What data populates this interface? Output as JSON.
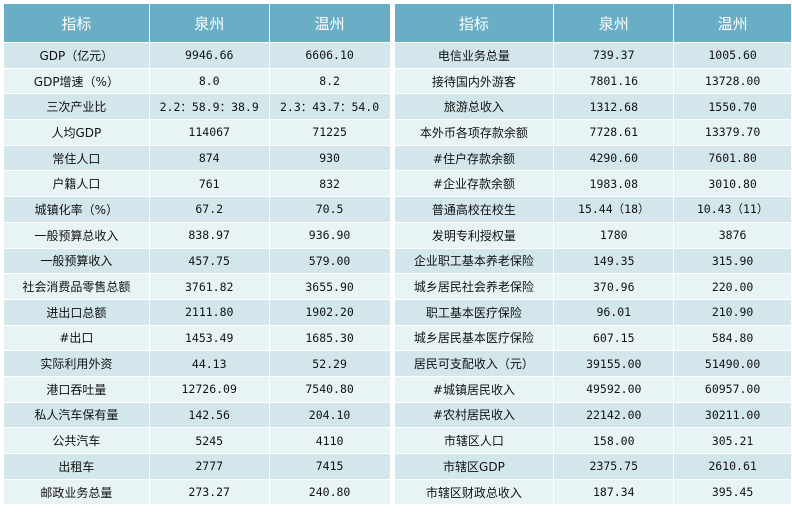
{
  "left": {
    "headers": [
      "指标",
      "泉州",
      "温州"
    ],
    "rows": [
      [
        "GDP（亿元）",
        "9946.66",
        "6606.10"
      ],
      [
        "GDP增速（%）",
        "8.0",
        "8.2"
      ],
      [
        "三次产业比",
        "2.2：58.9：38.9",
        "2.3：43.7：54.0"
      ],
      [
        "人均GDP",
        "114067",
        "71225"
      ],
      [
        "常住人口",
        "874",
        "930"
      ],
      [
        "户籍人口",
        "761",
        "832"
      ],
      [
        "城镇化率（%）",
        "67.2",
        "70.5"
      ],
      [
        "一般预算总收入",
        "838.97",
        "936.90"
      ],
      [
        "一般预算收入",
        "457.75",
        "579.00"
      ],
      [
        "社会消费品零售总额",
        "3761.82",
        "3655.90"
      ],
      [
        "进出口总额",
        "2111.80",
        "1902.20"
      ],
      [
        "#出口",
        "1453.49",
        "1685.30"
      ],
      [
        "实际利用外资",
        "44.13",
        "52.29"
      ],
      [
        "港口吞吐量",
        "12726.09",
        "7540.80"
      ],
      [
        "私人汽车保有量",
        "142.56",
        "204.10"
      ],
      [
        "公共汽车",
        "5245",
        "4110"
      ],
      [
        "出租车",
        "2777",
        "7415"
      ],
      [
        "邮政业务总量",
        "273.27",
        "240.80"
      ]
    ]
  },
  "right": {
    "headers": [
      "指标",
      "泉州",
      "温州"
    ],
    "rows": [
      [
        "电信业务总量",
        "739.37",
        "1005.60"
      ],
      [
        "接待国内外游客",
        "7801.16",
        "13728.00"
      ],
      [
        "旅游总收入",
        "1312.68",
        "1550.70"
      ],
      [
        "本外币各项存款余额",
        "7728.61",
        "13379.70"
      ],
      [
        "#住户存款余额",
        "4290.60",
        "7601.80"
      ],
      [
        "#企业存款余额",
        "1983.08",
        "3010.80"
      ],
      [
        "普通高校在校生",
        "15.44（18）",
        "10.43（11）"
      ],
      [
        "发明专利授权量",
        "1780",
        "3876"
      ],
      [
        "企业职工基本养老保险",
        "149.35",
        "315.90"
      ],
      [
        "城乡居民社会养老保险",
        "370.96",
        "220.00"
      ],
      [
        "职工基本医疗保险",
        "96.01",
        "210.90"
      ],
      [
        "城乡居民基本医疗保险",
        "607.15",
        "584.80"
      ],
      [
        "居民可支配收入（元）",
        "39155.00",
        "51490.00"
      ],
      [
        "#城镇居民收入",
        "49592.00",
        "60957.00"
      ],
      [
        "#农村居民收入",
        "22142.00",
        "30211.00"
      ],
      [
        "市辖区人口",
        "158.00",
        "305.21"
      ],
      [
        "市辖区GDP",
        "2375.75",
        "2610.61"
      ],
      [
        "市辖区财政总收入",
        "187.34",
        "395.45"
      ]
    ]
  },
  "colors": {
    "header_bg": "#69aec4",
    "row_odd": "#d3e6ec",
    "row_even": "#e8f3f6"
  }
}
